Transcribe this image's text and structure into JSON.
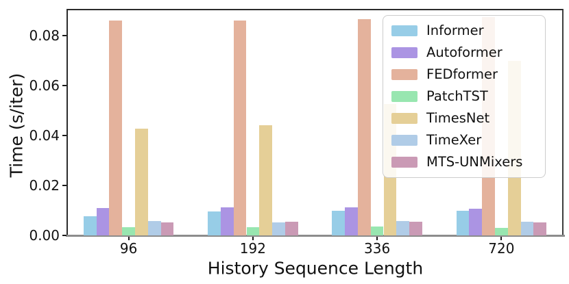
{
  "chart_data": {
    "type": "bar",
    "title": "",
    "xlabel": "History Sequence Length",
    "ylabel": "Time (s/iter)",
    "categories": [
      "96",
      "192",
      "336",
      "720"
    ],
    "series": [
      {
        "name": "Informer",
        "color": "#97cde7",
        "values": [
          0.0078,
          0.0095,
          0.01,
          0.01
        ]
      },
      {
        "name": "Autoformer",
        "color": "#ab94e3",
        "values": [
          0.011,
          0.0112,
          0.0113,
          0.0108
        ]
      },
      {
        "name": "FEDformer",
        "color": "#e4b29c",
        "values": [
          0.086,
          0.086,
          0.0865,
          0.0875
        ]
      },
      {
        "name": "PatchTST",
        "color": "#98e6b0",
        "values": [
          0.0032,
          0.0034,
          0.0035,
          0.0031
        ]
      },
      {
        "name": "TimesNet",
        "color": "#e5cf97",
        "values": [
          0.0428,
          0.044,
          0.0525,
          0.07
        ]
      },
      {
        "name": "TimeXer",
        "color": "#b0cce7",
        "values": [
          0.0058,
          0.0053,
          0.0058,
          0.0055
        ]
      },
      {
        "name": "MTS-UNMixers",
        "color": "#ca9ab5",
        "values": [
          0.0053,
          0.0056,
          0.0056,
          0.0051
        ]
      }
    ],
    "yticks": [
      0.0,
      0.02,
      0.04,
      0.06,
      0.08
    ],
    "ytick_labels": [
      "0.00",
      "0.02",
      "0.04",
      "0.06",
      "0.08"
    ],
    "ylim": [
      0,
      0.0907
    ],
    "grid": false,
    "legend_position": "upper right",
    "axis_colors": {
      "spine": "#2b2b2b",
      "baseline": "#8c8c8c",
      "text": "#111111"
    }
  }
}
